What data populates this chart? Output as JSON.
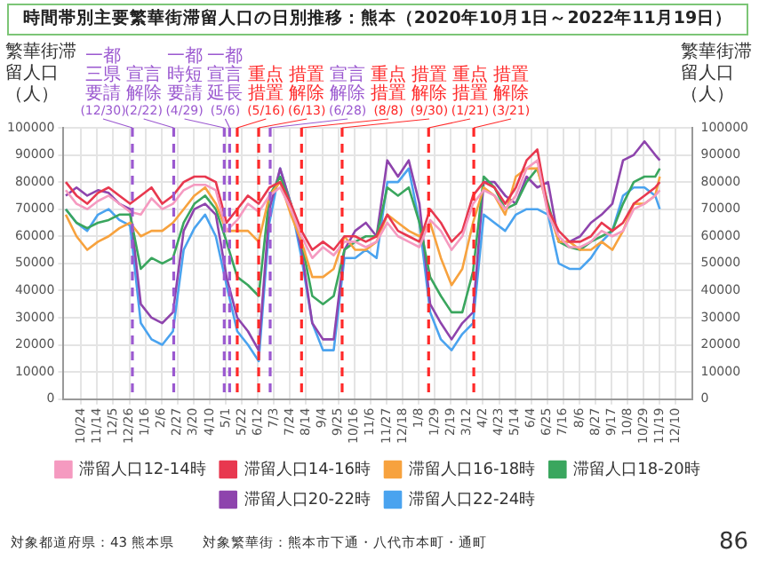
{
  "chart_data": {
    "type": "line",
    "title": "時間帯別主要繁華街滞留人口の日別推移：熊本（2020年10月1日～2022年11月19日）",
    "ylabel": "繁華街滞留人口（人）",
    "y2label": "繁華街滞留人口（人）",
    "x": [
      "2020-10-04",
      "2020-10-18",
      "2020-11-01",
      "2020-11-15",
      "2020-11-29",
      "2020-12-13",
      "2020-12-27",
      "2021-01-10",
      "2021-01-24",
      "2021-02-07",
      "2021-02-21",
      "2021-03-07",
      "2021-03-21",
      "2021-04-04",
      "2021-04-18",
      "2021-05-02",
      "2021-05-16",
      "2021-05-30",
      "2021-06-13",
      "2021-06-27",
      "2021-07-11",
      "2021-07-25",
      "2021-08-08",
      "2021-08-22",
      "2021-09-05",
      "2021-09-19",
      "2021-10-03",
      "2021-10-17",
      "2021-10-31",
      "2021-11-14",
      "2021-11-28",
      "2021-12-12",
      "2021-12-26",
      "2022-01-09",
      "2022-01-23",
      "2022-02-06",
      "2022-02-20",
      "2022-03-06",
      "2022-03-20",
      "2022-04-03",
      "2022-04-17",
      "2022-05-01",
      "2022-05-15",
      "2022-05-29",
      "2022-06-12",
      "2022-06-26",
      "2022-07-10",
      "2022-07-24",
      "2022-08-07",
      "2022-08-21",
      "2022-09-04",
      "2022-09-18",
      "2022-10-02",
      "2022-10-16",
      "2022-10-30",
      "2022-11-13",
      "2022-11-19"
    ],
    "series": [
      {
        "name": "滞留人口12-14時",
        "color": "#f59ac0",
        "values": [
          77000,
          72000,
          70000,
          73000,
          75000,
          72000,
          69000,
          68000,
          74000,
          70000,
          72000,
          77000,
          79000,
          79000,
          77000,
          62000,
          66000,
          72000,
          69000,
          75000,
          78000,
          70000,
          60000,
          52000,
          56000,
          53000,
          58000,
          58000,
          56000,
          58000,
          65000,
          60000,
          58000,
          56000,
          66000,
          62000,
          55000,
          60000,
          72000,
          77000,
          75000,
          70000,
          75000,
          85000,
          88000,
          68000,
          60000,
          56000,
          56000,
          58000,
          62000,
          60000,
          62000,
          70000,
          72000,
          75000,
          77000
        ]
      },
      {
        "name": "滞留人口14-16時",
        "color": "#e8384f",
        "values": [
          80000,
          75000,
          72000,
          76000,
          78000,
          75000,
          72000,
          75000,
          78000,
          72000,
          75000,
          80000,
          82000,
          82000,
          80000,
          65000,
          70000,
          75000,
          72000,
          78000,
          80000,
          72000,
          62000,
          55000,
          58000,
          55000,
          60000,
          60000,
          58000,
          60000,
          68000,
          62000,
          60000,
          58000,
          70000,
          65000,
          58000,
          62000,
          75000,
          80000,
          78000,
          72000,
          78000,
          88000,
          92000,
          70000,
          62000,
          58000,
          58000,
          60000,
          65000,
          62000,
          65000,
          72000,
          75000,
          78000,
          80000
        ]
      },
      {
        "name": "滞留人口16-18時",
        "color": "#f7a23e",
        "values": [
          68000,
          60000,
          55000,
          58000,
          60000,
          63000,
          65000,
          60000,
          62000,
          62000,
          65000,
          70000,
          75000,
          78000,
          72000,
          62000,
          62000,
          62000,
          58000,
          75000,
          80000,
          68000,
          58000,
          45000,
          45000,
          48000,
          60000,
          55000,
          55000,
          58000,
          68000,
          65000,
          62000,
          60000,
          65000,
          52000,
          42000,
          48000,
          65000,
          78000,
          75000,
          68000,
          82000,
          85000,
          85000,
          70000,
          58000,
          58000,
          55000,
          55000,
          58000,
          55000,
          62000,
          72000,
          72000,
          75000,
          82000
        ]
      },
      {
        "name": "滞留人口18-20時",
        "color": "#3aa65e",
        "values": [
          70000,
          65000,
          63000,
          65000,
          66000,
          68000,
          68000,
          48000,
          52000,
          50000,
          52000,
          65000,
          72000,
          75000,
          70000,
          58000,
          45000,
          42000,
          38000,
          75000,
          82000,
          72000,
          58000,
          38000,
          35000,
          38000,
          55000,
          58000,
          60000,
          60000,
          78000,
          75000,
          78000,
          65000,
          45000,
          38000,
          32000,
          32000,
          47000,
          82000,
          78000,
          70000,
          72000,
          80000,
          85000,
          72000,
          58000,
          56000,
          55000,
          58000,
          60000,
          62000,
          72000,
          80000,
          82000,
          82000,
          85000
        ]
      },
      {
        "name": "滞留人口20-22時",
        "color": "#8e44ad",
        "values": [
          75000,
          78000,
          75000,
          77000,
          76000,
          72000,
          70000,
          35000,
          30000,
          28000,
          32000,
          62000,
          70000,
          72000,
          68000,
          45000,
          30000,
          25000,
          18000,
          70000,
          85000,
          72000,
          55000,
          28000,
          22000,
          22000,
          55000,
          62000,
          65000,
          60000,
          88000,
          82000,
          88000,
          72000,
          35000,
          28000,
          22000,
          28000,
          32000,
          80000,
          80000,
          75000,
          72000,
          82000,
          78000,
          80000,
          58000,
          58000,
          60000,
          65000,
          68000,
          72000,
          88000,
          90000,
          95000,
          90000,
          88000
        ]
      },
      {
        "name": "滞留人口22-24時",
        "color": "#4aa3ef",
        "values": [
          70000,
          65000,
          62000,
          68000,
          70000,
          66000,
          64000,
          28000,
          22000,
          20000,
          25000,
          55000,
          63000,
          68000,
          60000,
          42000,
          25000,
          20000,
          14000,
          65000,
          85000,
          72000,
          52000,
          28000,
          18000,
          18000,
          52000,
          52000,
          55000,
          52000,
          80000,
          80000,
          85000,
          65000,
          32000,
          22000,
          18000,
          24000,
          28000,
          68000,
          65000,
          62000,
          68000,
          70000,
          70000,
          68000,
          50000,
          48000,
          48000,
          52000,
          58000,
          62000,
          75000,
          78000,
          78000,
          75000,
          70000
        ]
      }
    ],
    "xlim": [
      "2020-10-01",
      "2022-12-31"
    ],
    "xticks": [
      {
        "value": "2020-10-24",
        "label": "10/24"
      },
      {
        "value": "2020-11-14",
        "label": "11/14"
      },
      {
        "value": "2020-12-05",
        "label": "12/5"
      },
      {
        "value": "2020-12-26",
        "label": "12/26"
      },
      {
        "value": "2021-01-16",
        "label": "1/16"
      },
      {
        "value": "2021-02-06",
        "label": "2/6"
      },
      {
        "value": "2021-02-27",
        "label": "2/27"
      },
      {
        "value": "2021-03-20",
        "label": "3/20"
      },
      {
        "value": "2021-04-10",
        "label": "4/10"
      },
      {
        "value": "2021-05-01",
        "label": "5/1"
      },
      {
        "value": "2021-05-22",
        "label": "5/22"
      },
      {
        "value": "2021-06-12",
        "label": "6/12"
      },
      {
        "value": "2021-07-03",
        "label": "7/3"
      },
      {
        "value": "2021-07-24",
        "label": "7/24"
      },
      {
        "value": "2021-08-14",
        "label": "8/14"
      },
      {
        "value": "2021-09-04",
        "label": "9/4"
      },
      {
        "value": "2021-09-25",
        "label": "9/25"
      },
      {
        "value": "2021-10-16",
        "label": "10/16"
      },
      {
        "value": "2021-11-06",
        "label": "11/6"
      },
      {
        "value": "2021-11-27",
        "label": "11/27"
      },
      {
        "value": "2021-12-18",
        "label": "12/18"
      },
      {
        "value": "2022-01-08",
        "label": "1/8"
      },
      {
        "value": "2022-01-29",
        "label": "1/29"
      },
      {
        "value": "2022-02-19",
        "label": "2/19"
      },
      {
        "value": "2022-03-12",
        "label": "3/12"
      },
      {
        "value": "2022-04-02",
        "label": "4/2"
      },
      {
        "value": "2022-04-23",
        "label": "4/23"
      },
      {
        "value": "2022-05-14",
        "label": "5/14"
      },
      {
        "value": "2022-06-04",
        "label": "6/4"
      },
      {
        "value": "2022-06-25",
        "label": "6/25"
      },
      {
        "value": "2022-07-16",
        "label": "7/16"
      },
      {
        "value": "2022-08-06",
        "label": "8/6"
      },
      {
        "value": "2022-08-27",
        "label": "8/27"
      },
      {
        "value": "2022-09-17",
        "label": "9/17"
      },
      {
        "value": "2022-10-08",
        "label": "10/8"
      },
      {
        "value": "2022-10-29",
        "label": "10/29"
      },
      {
        "value": "2022-11-19",
        "label": "11/19"
      },
      {
        "value": "2022-12-10",
        "label": "12/10"
      }
    ],
    "ylim": [
      0,
      100000
    ],
    "yticks": [
      0,
      10000,
      20000,
      30000,
      40000,
      50000,
      60000,
      70000,
      80000,
      90000,
      100000
    ],
    "y2lim": [
      0,
      100000
    ],
    "y2ticks": [
      0,
      10000,
      20000,
      30000,
      40000,
      50000,
      60000,
      70000,
      80000,
      90000,
      100000
    ],
    "ref_lines": [
      {
        "axis": "x",
        "value": "2020-12-30",
        "label": "一都三県要請(12/30)",
        "color": "#9b59d0",
        "line_style": "dashed"
      },
      {
        "axis": "x",
        "value": "2021-02-22",
        "label": "宣言解除(2/22)",
        "color": "#9b59d0",
        "line_style": "dashed"
      },
      {
        "axis": "x",
        "value": "2021-04-29",
        "label": "一都時短要請(4/29)",
        "color": "#9b59d0",
        "line_style": "dashed"
      },
      {
        "axis": "x",
        "value": "2021-05-06",
        "label": "一都宣言延長(5/6)",
        "color": "#9b59d0",
        "line_style": "dashed"
      },
      {
        "axis": "x",
        "value": "2021-05-16",
        "label": "重点措置(5/16)",
        "color": "#ff2a2a",
        "line_style": "dashed"
      },
      {
        "axis": "x",
        "value": "2021-06-13",
        "label": "措置解除(6/13)",
        "color": "#ff2a2a",
        "line_style": "dashed"
      },
      {
        "axis": "x",
        "value": "2021-06-28",
        "label": "宣言解除(6/28)",
        "color": "#9b59d0",
        "line_style": "dashed"
      },
      {
        "axis": "x",
        "value": "2021-08-08",
        "label": "重点措置(8/8)",
        "color": "#ff2a2a",
        "line_style": "dashed"
      },
      {
        "axis": "x",
        "value": "2021-09-30",
        "label": "措置解除(9/30)",
        "color": "#ff2a2a",
        "line_style": "dashed"
      },
      {
        "axis": "x",
        "value": "2022-01-21",
        "label": "重点措置(1/21)",
        "color": "#ff2a2a",
        "line_style": "dashed"
      },
      {
        "axis": "x",
        "value": "2022-03-21",
        "label": "措置解除(3/21)",
        "color": "#ff2a2a",
        "line_style": "dashed"
      }
    ],
    "annotations": [
      "対象都道府県：43 熊本県",
      "対象繁華街：熊本市下通・八代市本町・通町",
      "86"
    ],
    "grid": true,
    "legend": "bottom",
    "marker": "none",
    "line_style": "solid"
  }
}
